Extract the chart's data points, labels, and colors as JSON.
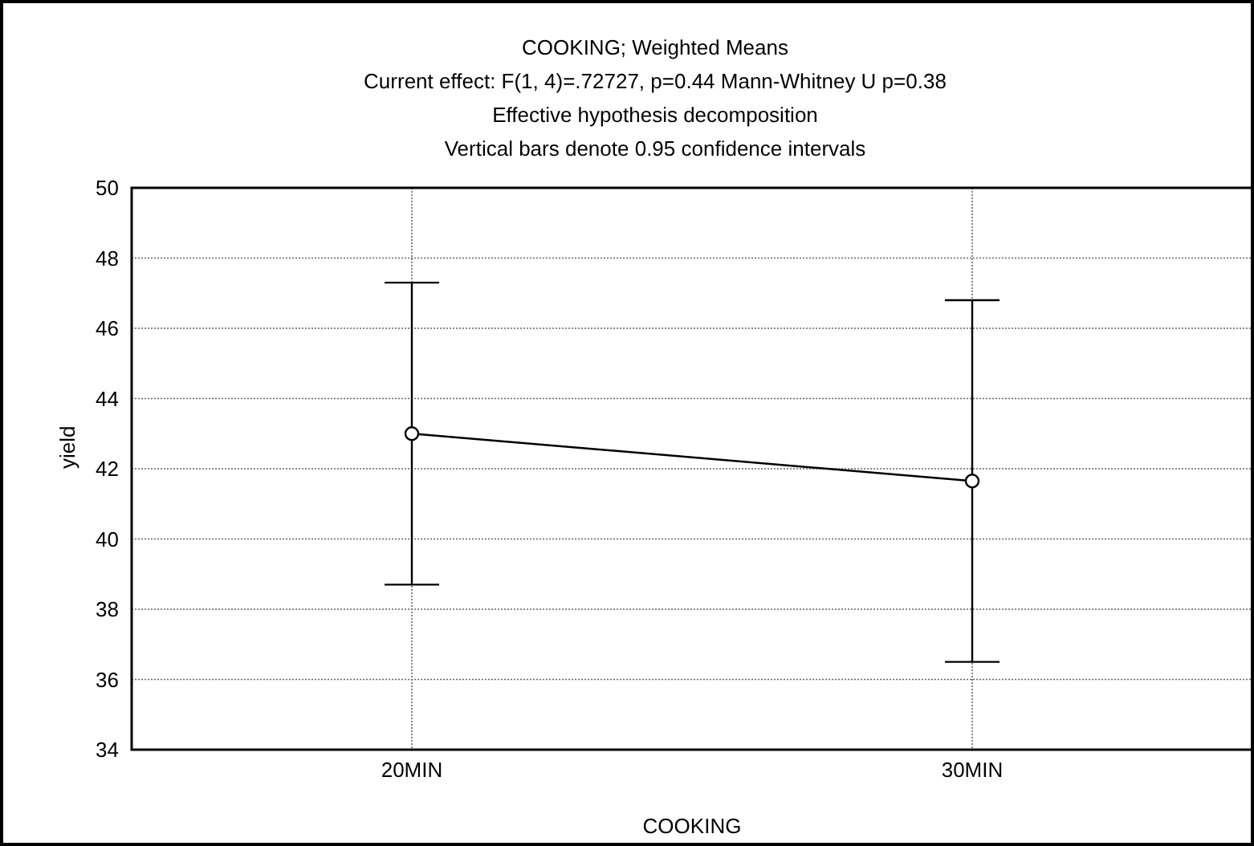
{
  "chart_data": {
    "type": "line",
    "title": "COOKING; Weighted Means",
    "subtitle": "Current effect: F(1, 4)=.72727, p=0.44 Mann-Whitney U p=0.38\nEffective hypothesis decomposition\nVertical bars denote 0.95 confidence intervals",
    "xlabel": "COOKING",
    "ylabel": "yield",
    "categories": [
      "20MIN",
      "30MIN"
    ],
    "values": [
      43.0,
      41.65
    ],
    "errors": [
      [
        38.7,
        47.3
      ],
      [
        36.5,
        46.8
      ]
    ],
    "color": "#000000",
    "ylim": [
      34,
      50
    ],
    "yticks": [
      34,
      36,
      38,
      40,
      42,
      44,
      46,
      48,
      50
    ],
    "grid": true,
    "marker": "circle",
    "line_style": "solid"
  }
}
